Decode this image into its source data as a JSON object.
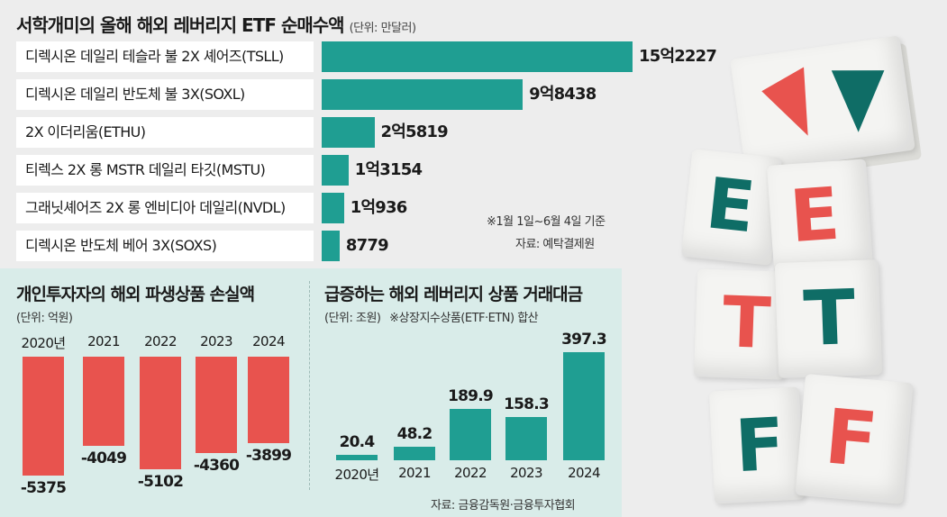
{
  "top": {
    "title": "서학개미의 올해 해외 레버리지 ETF 순매수액",
    "unit": "(단위: 만달러)",
    "note": "※1월 1일~6월 4일 기준",
    "source": "자료: 예탁결제원"
  },
  "loss": {
    "title": "개인투자자의 해외 파생상품 손실액",
    "unit": "(단위: 억원)"
  },
  "volume": {
    "title": "급증하는 해외 레버리지 상품 거래대금",
    "unit": "(단위: 조원)",
    "note": "※상장지수상품(ETF·ETN) 합산",
    "source": "자료: 금융감독원·금융투자협회"
  },
  "colors": {
    "teal": "#1f9e92",
    "red": "#e8534e",
    "background": "#ededed",
    "panel": "#d9ece9"
  },
  "decoration": {
    "cube_letters": [
      "E",
      "E",
      "T",
      "T",
      "F",
      "F"
    ],
    "arrows": [
      "up-arrow-icon",
      "down-arrow-icon"
    ]
  },
  "chart_data": [
    {
      "type": "bar",
      "orientation": "horizontal",
      "title": "서학개미의 올해 해외 레버리지 ETF 순매수액",
      "categories": [
        "디렉시온 데일리 테슬라 불 2X 셰어즈(TSLL)",
        "디렉시온 데일리 반도체 불 3X(SOXL)",
        "2X 이더리움(ETHU)",
        "티렉스 2X 롱 MSTR 데일리 타깃(MSTU)",
        "그래닛셰어즈 2X 롱 엔비디아 데일리(NVDL)",
        "디렉시온 반도체 베어 3X(SOXS)"
      ],
      "values": [
        152227,
        98438,
        25819,
        13154,
        10936,
        8779
      ],
      "value_labels": [
        "15억2227",
        "9억8438",
        "2억5819",
        "1억3154",
        "1억936",
        "8779"
      ],
      "xlim": [
        0,
        160000
      ]
    },
    {
      "type": "bar",
      "title": "개인투자자의 해외 파생상품 손실액",
      "categories": [
        "2020년",
        "2021",
        "2022",
        "2023",
        "2024"
      ],
      "values": [
        -5375,
        -4049,
        -5102,
        -4360,
        -3899
      ],
      "value_labels": [
        "-5375",
        "-4049",
        "-5102",
        "-4360",
        "-3899"
      ],
      "ylim": [
        -5375,
        0
      ]
    },
    {
      "type": "bar",
      "title": "급증하는 해외 레버리지 상품 거래대금",
      "categories": [
        "2020년",
        "2021",
        "2022",
        "2023",
        "2024"
      ],
      "values": [
        20.4,
        48.2,
        189.9,
        158.3,
        397.3
      ],
      "value_labels": [
        "20.4",
        "48.2",
        "189.9",
        "158.3",
        "397.3"
      ],
      "ylim": [
        0,
        400
      ]
    }
  ]
}
